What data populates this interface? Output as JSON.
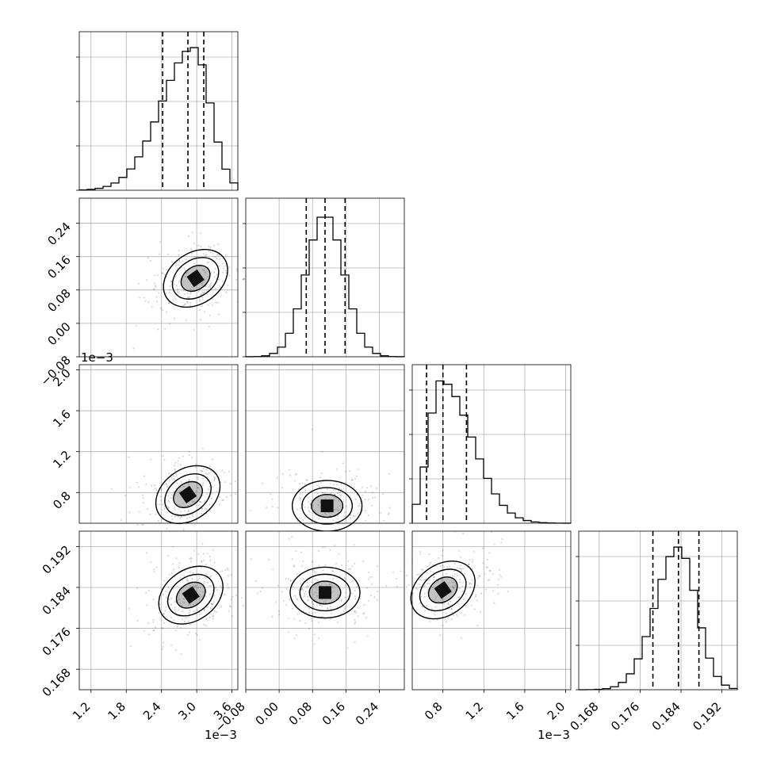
{
  "colors": {
    "ink": "#000000",
    "grid": "#b0b0b0",
    "frame": "#000000",
    "scatter": "#000000",
    "background": "#ffffff"
  },
  "chart_data": {
    "type": "corner",
    "parameters": [
      {
        "range": [
          1.0,
          3.7
        ],
        "ticks": [
          1.2,
          1.8,
          2.4,
          3.0,
          3.6
        ],
        "tick_labels": [
          "1.2",
          "1.8",
          "2.4",
          "3.0",
          "3.6"
        ],
        "offset_label": "1e−3",
        "quantiles": [
          2.42,
          2.85,
          3.12
        ],
        "truth": 3.0,
        "peak": 2.95,
        "left_width": 0.55,
        "right_width": 0.28
      },
      {
        "range": [
          -0.08,
          0.3
        ],
        "ticks": [
          -0.08,
          0.0,
          0.08,
          0.16,
          0.24
        ],
        "tick_labels": [
          "−0.08",
          "0.00",
          "0.08",
          "0.16",
          "0.24"
        ],
        "offset_label": "",
        "quantiles": [
          0.065,
          0.11,
          0.158
        ],
        "truth": 0.105,
        "peak": 0.11,
        "left_width": 0.045,
        "right_width": 0.045
      },
      {
        "range": [
          0.5,
          2.05
        ],
        "ticks": [
          0.8,
          1.2,
          1.6,
          2.0
        ],
        "tick_labels": [
          "0.8",
          "1.2",
          "1.6",
          "2.0"
        ],
        "offset_label": "1e−3",
        "quantiles": [
          0.64,
          0.8,
          1.03
        ],
        "truth": 0.82,
        "peak": 0.78,
        "left_width": 0.12,
        "right_width": 0.3
      },
      {
        "range": [
          0.164,
          0.195
        ],
        "ticks": [
          0.168,
          0.176,
          0.184,
          0.192
        ],
        "tick_labels": [
          "0.168",
          "0.176",
          "0.184",
          "0.192"
        ],
        "offset_label": "",
        "quantiles": [
          0.1785,
          0.1835,
          0.1875
        ],
        "truth": 0.183,
        "peak": 0.1835,
        "left_width": 0.0045,
        "right_width": 0.0035
      }
    ],
    "pair_centers": [
      {
        "pair": [
          1,
          0
        ],
        "center": [
          2.98,
          0.108
        ]
      },
      {
        "pair": [
          2,
          0
        ],
        "center": [
          2.85,
          0.78
        ]
      },
      {
        "pair": [
          2,
          1
        ],
        "center": [
          0.115,
          0.67
        ]
      },
      {
        "pair": [
          3,
          0
        ],
        "center": [
          2.9,
          0.1825
        ]
      },
      {
        "pair": [
          3,
          1
        ],
        "center": [
          0.11,
          0.183
        ]
      },
      {
        "pair": [
          3,
          2
        ],
        "center": [
          0.8,
          0.1835
        ]
      }
    ],
    "grid": true
  }
}
